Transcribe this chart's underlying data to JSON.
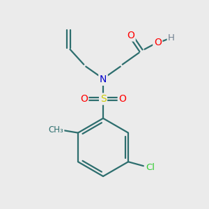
{
  "background_color": "#ebebeb",
  "bond_color": "#2d6e6e",
  "atom_colors": {
    "O": "#ff0000",
    "N": "#0000cc",
    "S": "#cccc00",
    "Cl": "#33cc33",
    "H": "#708090",
    "C": "#2d6e6e"
  },
  "figsize": [
    3.0,
    3.0
  ],
  "dpi": 100
}
